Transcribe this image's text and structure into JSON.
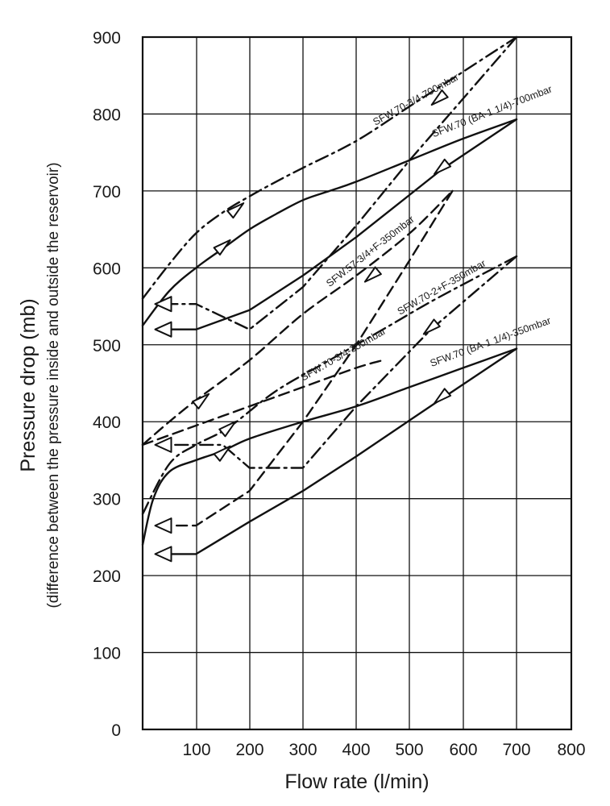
{
  "chart_data": {
    "type": "line",
    "ylabel": "Pressure drop (mb)",
    "ylabel_sub": "(difference between the pressure inside and outside the reservoir)",
    "xlabel": "Flow rate (l/min)",
    "xlim": [
      0,
      700
    ],
    "ylim": [
      0,
      900
    ],
    "xticks": [
      "100",
      "200",
      "300",
      "400",
      "500",
      "600",
      "700",
      "800"
    ],
    "yticks": [
      "0",
      "100",
      "200",
      "300",
      "400",
      "500",
      "600",
      "700",
      "800",
      "900"
    ],
    "grid": true,
    "series": [
      {
        "name": "SFW.70-3/4-700mbar",
        "style": "dash-dot",
        "rising": [
          [
            0,
            560
          ],
          [
            50,
            605
          ],
          [
            100,
            645
          ],
          [
            150,
            672
          ],
          [
            200,
            693
          ],
          [
            250,
            712
          ],
          [
            300,
            730
          ],
          [
            400,
            765
          ],
          [
            500,
            810
          ],
          [
            600,
            855
          ],
          [
            700,
            900
          ]
        ],
        "falling": [
          [
            700,
            900
          ],
          [
            600,
            820
          ],
          [
            500,
            740
          ],
          [
            400,
            655
          ],
          [
            300,
            575
          ],
          [
            200,
            520
          ],
          [
            100,
            553
          ],
          [
            50,
            553
          ]
        ],
        "arrows": [
          [
            175,
            676,
            "up"
          ],
          [
            555,
            820,
            "down"
          ],
          [
            40,
            553,
            "left"
          ]
        ]
      },
      {
        "name": "SFW.70 (BA-1 1/4)-700mbar",
        "style": "solid",
        "rising": [
          [
            0,
            525
          ],
          [
            50,
            570
          ],
          [
            100,
            600
          ],
          [
            150,
            625
          ],
          [
            200,
            650
          ],
          [
            250,
            670
          ],
          [
            300,
            688
          ],
          [
            350,
            700
          ],
          [
            400,
            712
          ],
          [
            500,
            740
          ],
          [
            600,
            768
          ],
          [
            700,
            793
          ]
        ],
        "falling": [
          [
            700,
            793
          ],
          [
            560,
            728
          ],
          [
            400,
            640
          ],
          [
            300,
            590
          ],
          [
            200,
            545
          ],
          [
            100,
            520
          ],
          [
            50,
            520
          ]
        ],
        "arrows": [
          [
            150,
            628,
            "up"
          ],
          [
            560,
            730,
            "down"
          ],
          [
            40,
            520,
            "left"
          ]
        ]
      },
      {
        "name": "SFW.57-3/4+F-350mbar",
        "style": "dash",
        "rising": [
          [
            0,
            370
          ],
          [
            50,
            400
          ],
          [
            100,
            428
          ],
          [
            200,
            480
          ],
          [
            300,
            540
          ],
          [
            400,
            590
          ],
          [
            500,
            645
          ],
          [
            580,
            700
          ]
        ],
        "falling": [
          [
            580,
            700
          ],
          [
            500,
            610
          ],
          [
            400,
            500
          ],
          [
            300,
            400
          ],
          [
            200,
            310
          ],
          [
            100,
            265
          ],
          [
            50,
            265
          ]
        ],
        "arrows": [
          [
            110,
            428,
            "up"
          ],
          [
            430,
            590,
            "down"
          ],
          [
            40,
            265,
            "left"
          ]
        ]
      },
      {
        "name": "SFW.70-2+F-350mbar",
        "style": "dash-dot",
        "rising": [
          [
            0,
            280
          ],
          [
            50,
            345
          ],
          [
            100,
            370
          ],
          [
            160,
            392
          ],
          [
            250,
            440
          ],
          [
            350,
            480
          ],
          [
            450,
            520
          ],
          [
            550,
            560
          ],
          [
            700,
            615
          ]
        ],
        "falling": [
          [
            700,
            615
          ],
          [
            540,
            520
          ],
          [
            400,
            420
          ],
          [
            300,
            340
          ],
          [
            200,
            340
          ],
          [
            150,
            370
          ],
          [
            50,
            370
          ]
        ],
        "arrows": [
          [
            160,
            392,
            "up"
          ],
          [
            540,
            522,
            "down"
          ],
          [
            40,
            370,
            "left"
          ]
        ]
      },
      {
        "name": "SFW.70-3/4-350mbar",
        "style": "dash",
        "rising": [
          [
            0,
            370
          ],
          [
            100,
            395
          ],
          [
            200,
            420
          ],
          [
            300,
            445
          ],
          [
            400,
            470
          ],
          [
            450,
            480
          ]
        ],
        "falling": [],
        "arrows": []
      },
      {
        "name": "SFW.70 (BA-1 1/4)-350mbar",
        "style": "solid",
        "rising": [
          [
            0,
            240
          ],
          [
            20,
            300
          ],
          [
            50,
            335
          ],
          [
            100,
            350
          ],
          [
            150,
            362
          ],
          [
            200,
            378
          ],
          [
            300,
            400
          ],
          [
            400,
            420
          ],
          [
            500,
            445
          ],
          [
            600,
            470
          ],
          [
            700,
            495
          ]
        ],
        "falling": [
          [
            700,
            495
          ],
          [
            560,
            430
          ],
          [
            400,
            355
          ],
          [
            300,
            310
          ],
          [
            200,
            270
          ],
          [
            100,
            228
          ],
          [
            50,
            228
          ]
        ],
        "arrows": [
          [
            150,
            360,
            "up"
          ],
          [
            560,
            432,
            "down"
          ],
          [
            40,
            228,
            "left"
          ]
        ]
      }
    ],
    "annotations": [
      "SFW.70-3/4-700mbar",
      "SFW.70 (BA-1 1/4)-700mbar",
      "SFW.57-3/4+F-350mbar",
      "SFW.70-2+F-350mbar",
      "SFW.70-3/4-350mbar",
      "SFW.70 (BA-1 1/4)-350mbar"
    ]
  }
}
